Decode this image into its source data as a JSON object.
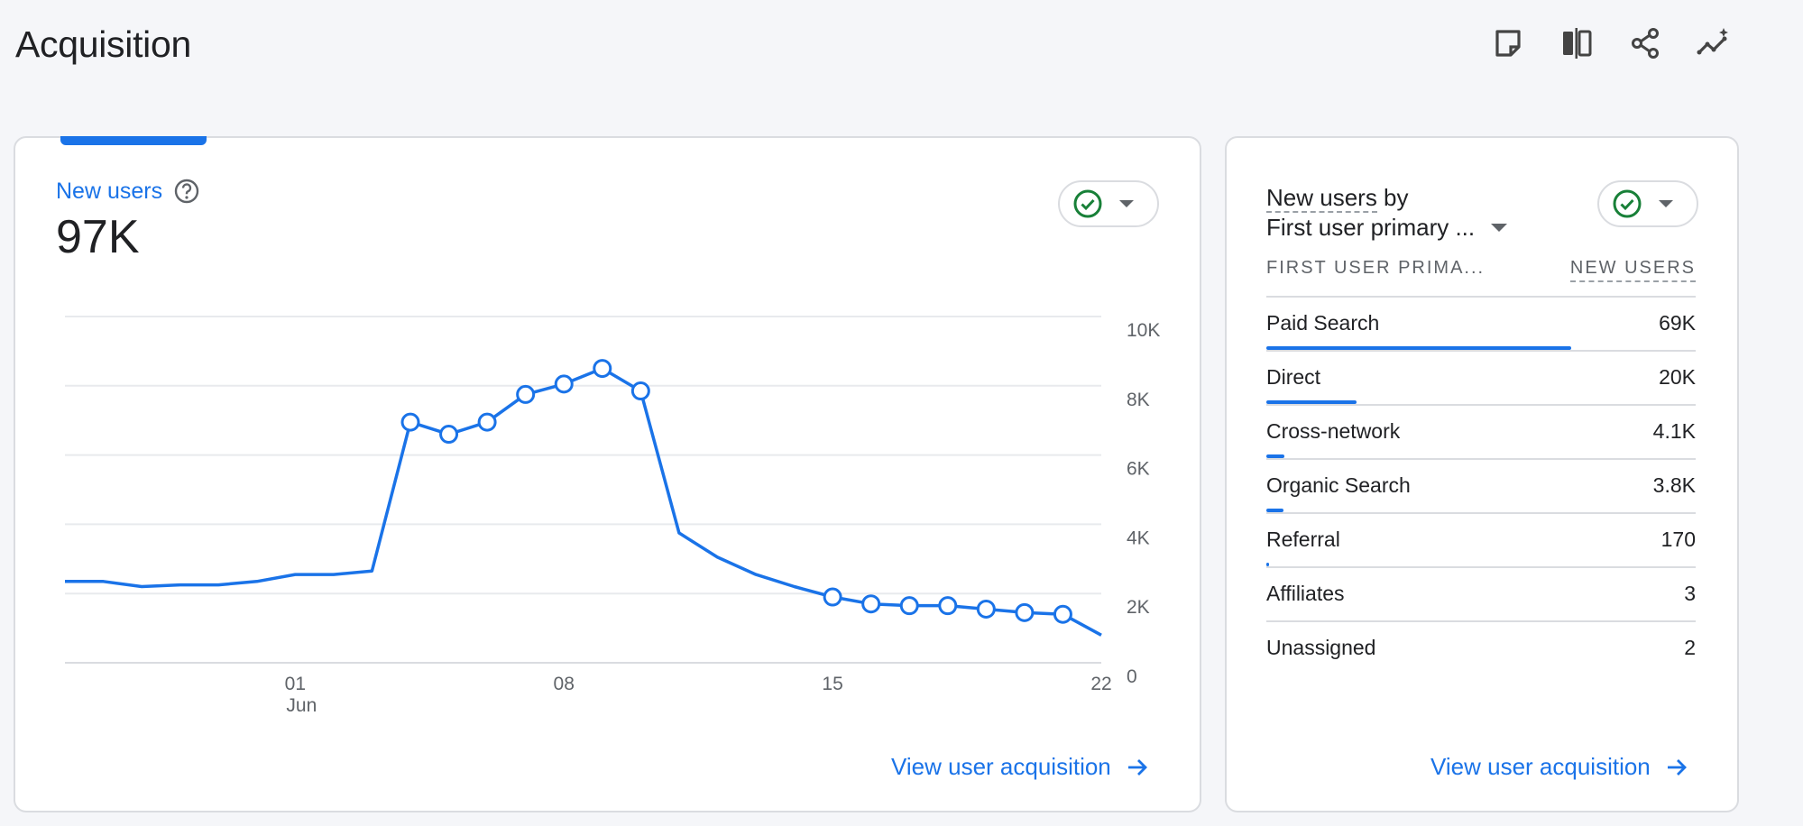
{
  "page": {
    "title": "Acquisition"
  },
  "toolbar": {
    "icons": [
      "note-icon",
      "compare-icon",
      "share-icon",
      "insights-icon"
    ]
  },
  "colors": {
    "accent": "#1a73e8",
    "success": "#188038",
    "text": "#202124",
    "muted": "#5f6368",
    "border": "#dadce0"
  },
  "main_card": {
    "metric_label": "New users",
    "metric_value": "97K",
    "link_label": "View user acquisition"
  },
  "chart_data": {
    "type": "line",
    "series": [
      {
        "name": "New users",
        "values": [
          2350,
          2350,
          2200,
          2250,
          2250,
          2350,
          2550,
          2550,
          2650,
          6950,
          6600,
          6950,
          7750,
          8050,
          8500,
          7850,
          3750,
          3050,
          2550,
          2200,
          1900,
          1700,
          1650,
          1650,
          1550,
          1450,
          1400,
          800
        ],
        "markers": [
          9,
          10,
          11,
          12,
          13,
          14,
          15,
          20,
          21,
          22,
          23,
          24,
          25,
          26
        ]
      }
    ],
    "x_ticks": [
      {
        "index": 6,
        "label": "01",
        "sublabel": "Jun"
      },
      {
        "index": 13,
        "label": "08",
        "sublabel": ""
      },
      {
        "index": 20,
        "label": "15",
        "sublabel": ""
      },
      {
        "index": 27,
        "label": "22",
        "sublabel": ""
      }
    ],
    "y_ticks": [
      {
        "value": 10000,
        "label": "10K"
      },
      {
        "value": 8000,
        "label": "8K"
      },
      {
        "value": 6000,
        "label": "6K"
      },
      {
        "value": 4000,
        "label": "4K"
      },
      {
        "value": 2000,
        "label": "2K"
      },
      {
        "value": 0,
        "label": "0"
      }
    ],
    "ylim": [
      0,
      10000
    ],
    "grid": true
  },
  "side_card": {
    "title_underlined": "New users",
    "title_rest": " by",
    "dimension": "First user primary ...",
    "col_left": "FIRST USER PRIMA...",
    "col_right": "NEW USERS",
    "link_label": "View user acquisition",
    "rows": [
      {
        "label": "Paid Search",
        "value": "69K",
        "share": 0.71
      },
      {
        "label": "Direct",
        "value": "20K",
        "share": 0.21
      },
      {
        "label": "Cross-network",
        "value": "4.1K",
        "share": 0.043
      },
      {
        "label": "Organic Search",
        "value": "3.8K",
        "share": 0.04
      },
      {
        "label": "Referral",
        "value": "170",
        "share": 0.004
      },
      {
        "label": "Affiliates",
        "value": "3",
        "share": 0
      },
      {
        "label": "Unassigned",
        "value": "2",
        "share": 0
      }
    ]
  }
}
